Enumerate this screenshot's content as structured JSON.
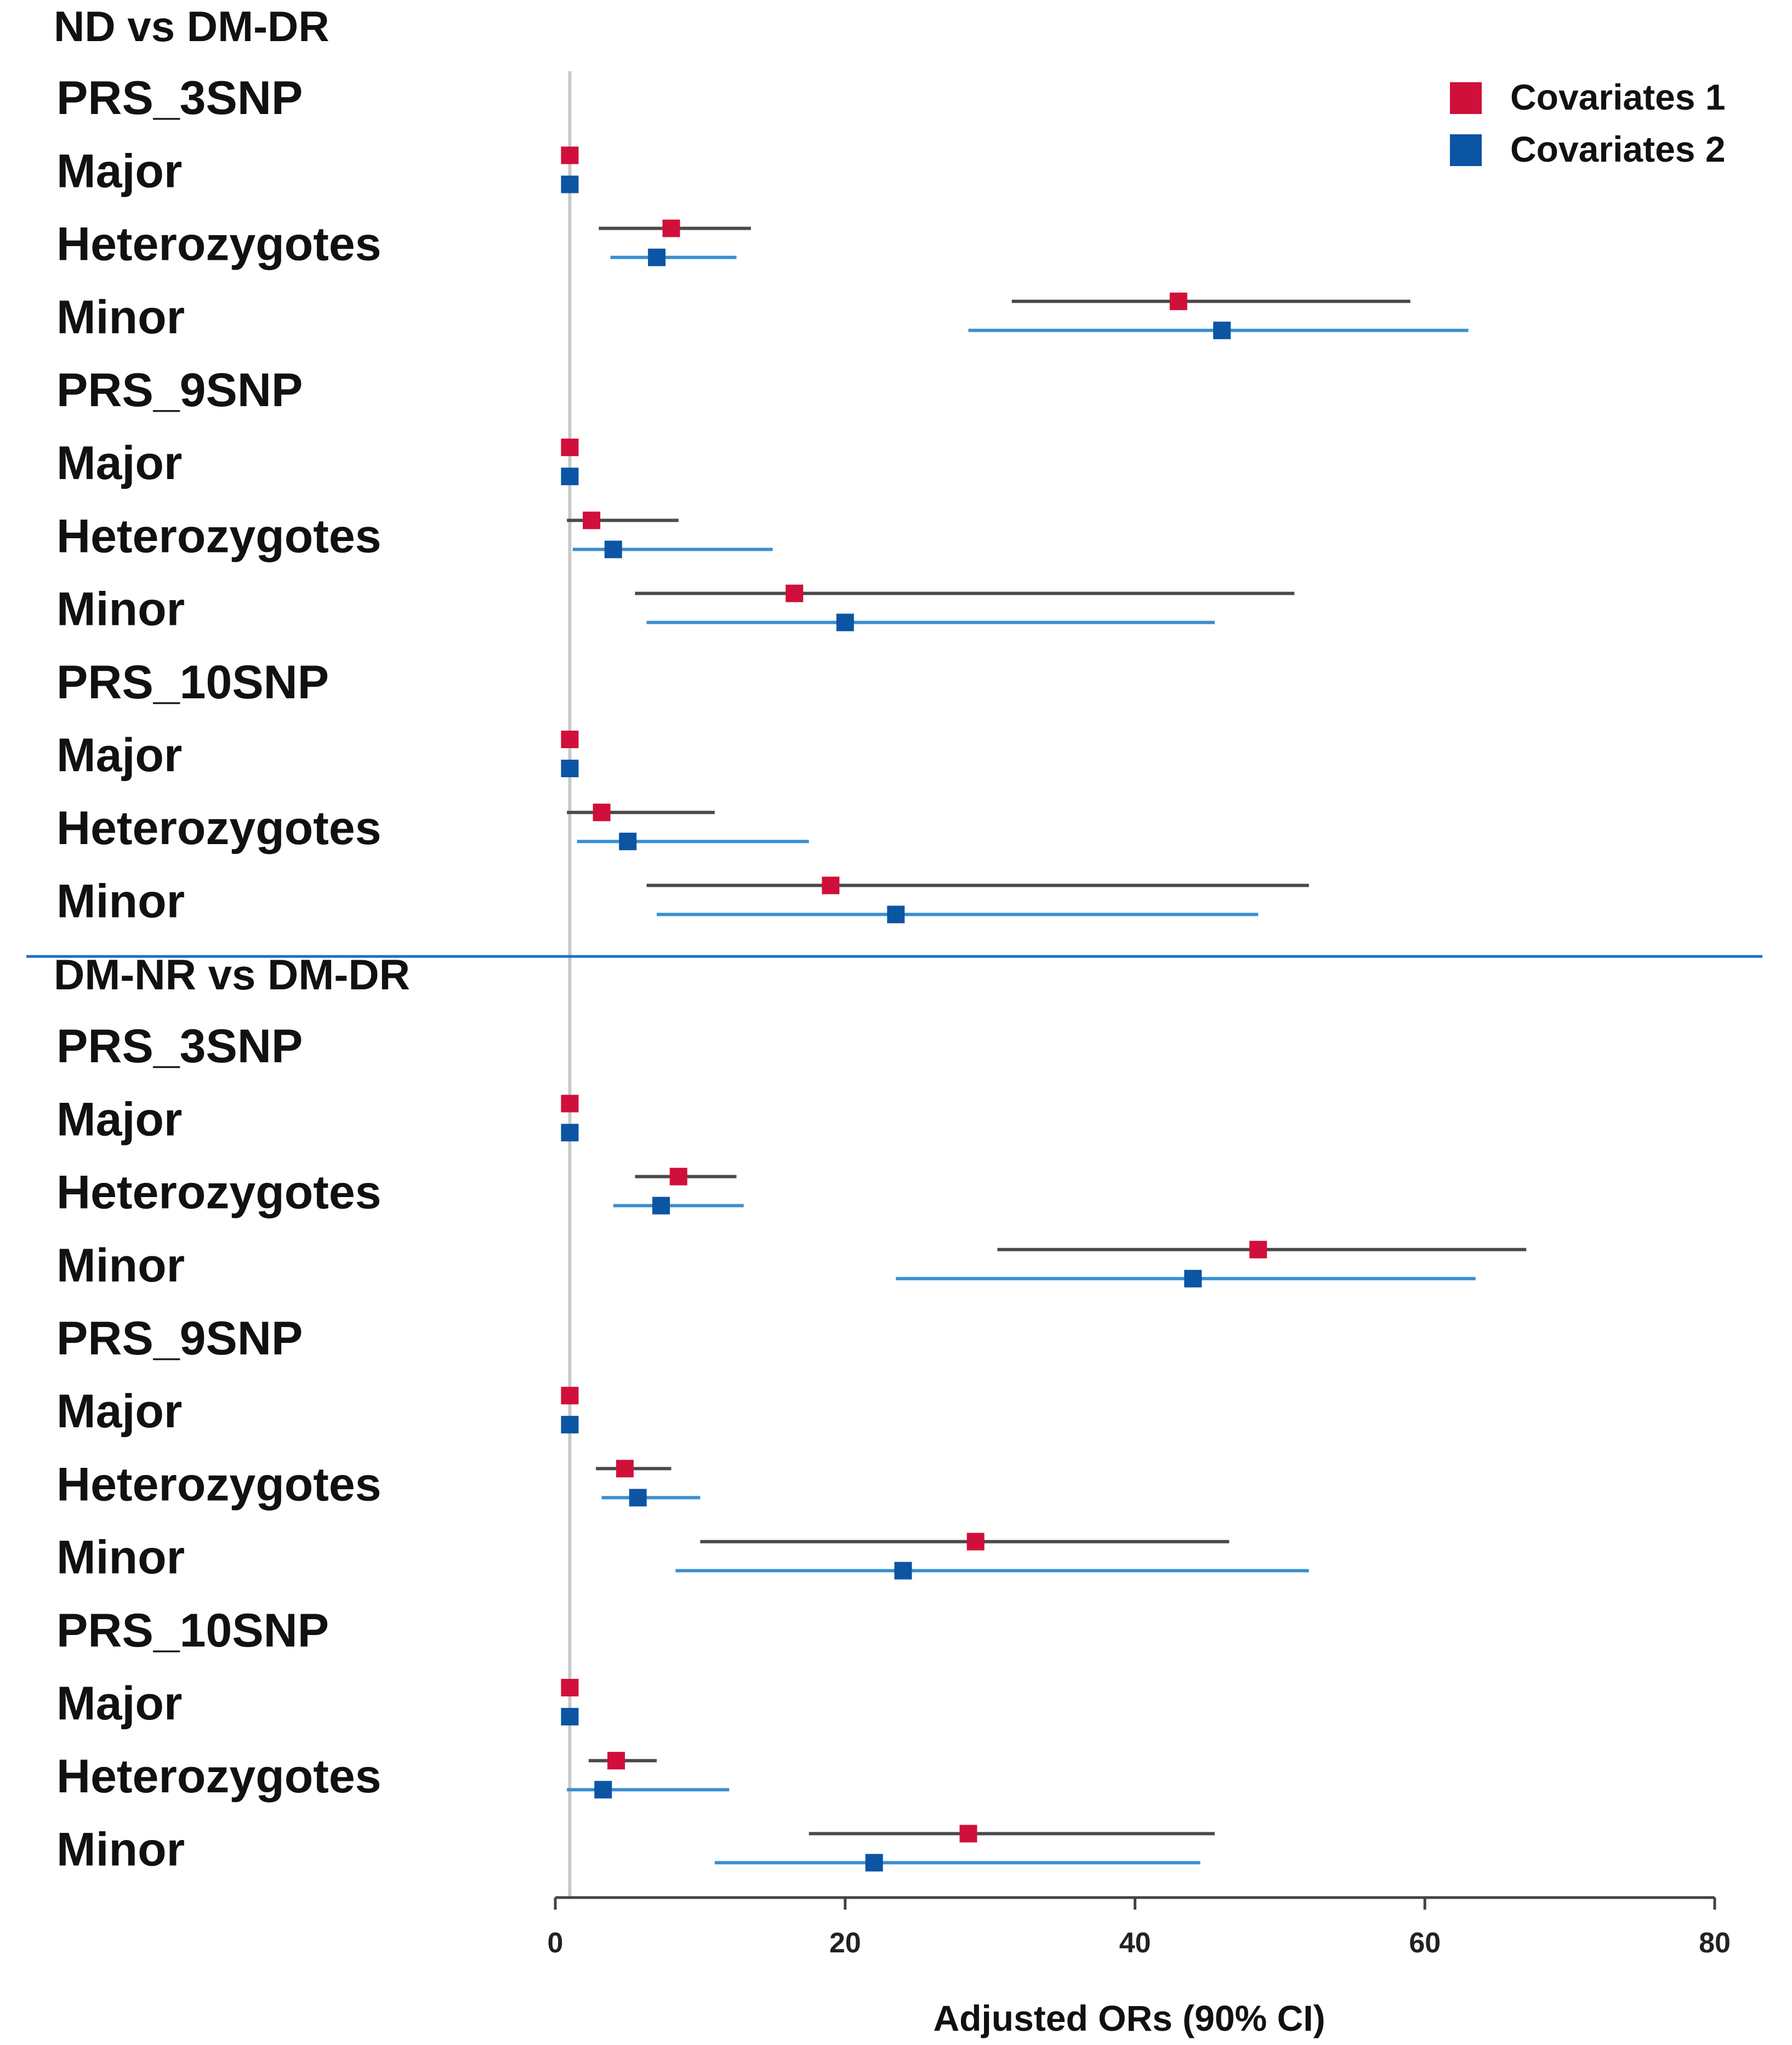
{
  "chart_data": {
    "type": "forest",
    "xlabel": "Adjusted ORs (90% CI)",
    "xlim": [
      0,
      80
    ],
    "xticks": [
      0,
      20,
      40,
      60,
      80
    ],
    "reference_line": 1,
    "legend": [
      {
        "name": "Covariates 1",
        "color": "#d0103a",
        "ci_color": "#4a4a4a"
      },
      {
        "name": "Covariates 2",
        "color": "#0b55a3",
        "ci_color": "#3a8fd0"
      }
    ],
    "sections": [
      {
        "title": "ND vs DM-DR",
        "groups": [
          {
            "name": "PRS_3SNP",
            "rows": [
              {
                "label": "Major",
                "c1": {
                  "or": 1,
                  "lo": 1,
                  "hi": 1
                },
                "c2": {
                  "or": 1,
                  "lo": 1,
                  "hi": 1
                }
              },
              {
                "label": "Heterozygotes",
                "c1": {
                  "or": 8,
                  "lo": 3,
                  "hi": 13.5
                },
                "c2": {
                  "or": 7,
                  "lo": 3.8,
                  "hi": 12.5
                }
              },
              {
                "label": "Minor",
                "c1": {
                  "or": 43,
                  "lo": 31.5,
                  "hi": 59
                },
                "c2": {
                  "or": 46,
                  "lo": 28.5,
                  "hi": 63
                }
              }
            ]
          },
          {
            "name": "PRS_9SNP",
            "rows": [
              {
                "label": "Major",
                "c1": {
                  "or": 1,
                  "lo": 1,
                  "hi": 1
                },
                "c2": {
                  "or": 1,
                  "lo": 1,
                  "hi": 1
                }
              },
              {
                "label": "Heterozygotes",
                "c1": {
                  "or": 2.5,
                  "lo": 0.8,
                  "hi": 8.5
                },
                "c2": {
                  "or": 4,
                  "lo": 1.2,
                  "hi": 15
                }
              },
              {
                "label": "Minor",
                "c1": {
                  "or": 16.5,
                  "lo": 5.5,
                  "hi": 51
                },
                "c2": {
                  "or": 20,
                  "lo": 6.3,
                  "hi": 45.5
                }
              }
            ]
          },
          {
            "name": "PRS_10SNP",
            "rows": [
              {
                "label": "Major",
                "c1": {
                  "or": 1,
                  "lo": 1,
                  "hi": 1
                },
                "c2": {
                  "or": 1,
                  "lo": 1,
                  "hi": 1
                }
              },
              {
                "label": "Heterozygotes",
                "c1": {
                  "or": 3.2,
                  "lo": 0.8,
                  "hi": 11
                },
                "c2": {
                  "or": 5,
                  "lo": 1.5,
                  "hi": 17.5
                }
              },
              {
                "label": "Minor",
                "c1": {
                  "or": 19,
                  "lo": 6.3,
                  "hi": 52
                },
                "c2": {
                  "or": 23.5,
                  "lo": 7,
                  "hi": 48.5
                }
              }
            ]
          }
        ]
      },
      {
        "title": "DM-NR vs DM-DR",
        "groups": [
          {
            "name": "PRS_3SNP",
            "rows": [
              {
                "label": "Major",
                "c1": {
                  "or": 1,
                  "lo": 1,
                  "hi": 1
                },
                "c2": {
                  "or": 1,
                  "lo": 1,
                  "hi": 1
                }
              },
              {
                "label": "Heterozygotes",
                "c1": {
                  "or": 8.5,
                  "lo": 5.5,
                  "hi": 12.5
                },
                "c2": {
                  "or": 7.3,
                  "lo": 4,
                  "hi": 13
                }
              },
              {
                "label": "Minor",
                "c1": {
                  "or": 48.5,
                  "lo": 30.5,
                  "hi": 67
                },
                "c2": {
                  "or": 44,
                  "lo": 23.5,
                  "hi": 63.5
                }
              }
            ]
          },
          {
            "name": "PRS_9SNP",
            "rows": [
              {
                "label": "Major",
                "c1": {
                  "or": 1,
                  "lo": 1,
                  "hi": 1
                },
                "c2": {
                  "or": 1,
                  "lo": 1,
                  "hi": 1
                }
              },
              {
                "label": "Heterozygotes",
                "c1": {
                  "or": 4.8,
                  "lo": 2.8,
                  "hi": 8
                },
                "c2": {
                  "or": 5.7,
                  "lo": 3.2,
                  "hi": 10
                }
              },
              {
                "label": "Minor",
                "c1": {
                  "or": 29,
                  "lo": 10,
                  "hi": 46.5
                },
                "c2": {
                  "or": 24,
                  "lo": 8.3,
                  "hi": 52
                }
              }
            ]
          },
          {
            "name": "PRS_10SNP",
            "rows": [
              {
                "label": "Major",
                "c1": {
                  "or": 1,
                  "lo": 1,
                  "hi": 1
                },
                "c2": {
                  "or": 1,
                  "lo": 1,
                  "hi": 1
                }
              },
              {
                "label": "Heterozygotes",
                "c1": {
                  "or": 4.2,
                  "lo": 2.3,
                  "hi": 7
                },
                "c2": {
                  "or": 3.3,
                  "lo": 0.8,
                  "hi": 12
                }
              },
              {
                "label": "Minor",
                "c1": {
                  "or": 28.5,
                  "lo": 17.5,
                  "hi": 45.5
                },
                "c2": {
                  "or": 22,
                  "lo": 11,
                  "hi": 44.5
                }
              }
            ]
          }
        ]
      }
    ]
  }
}
